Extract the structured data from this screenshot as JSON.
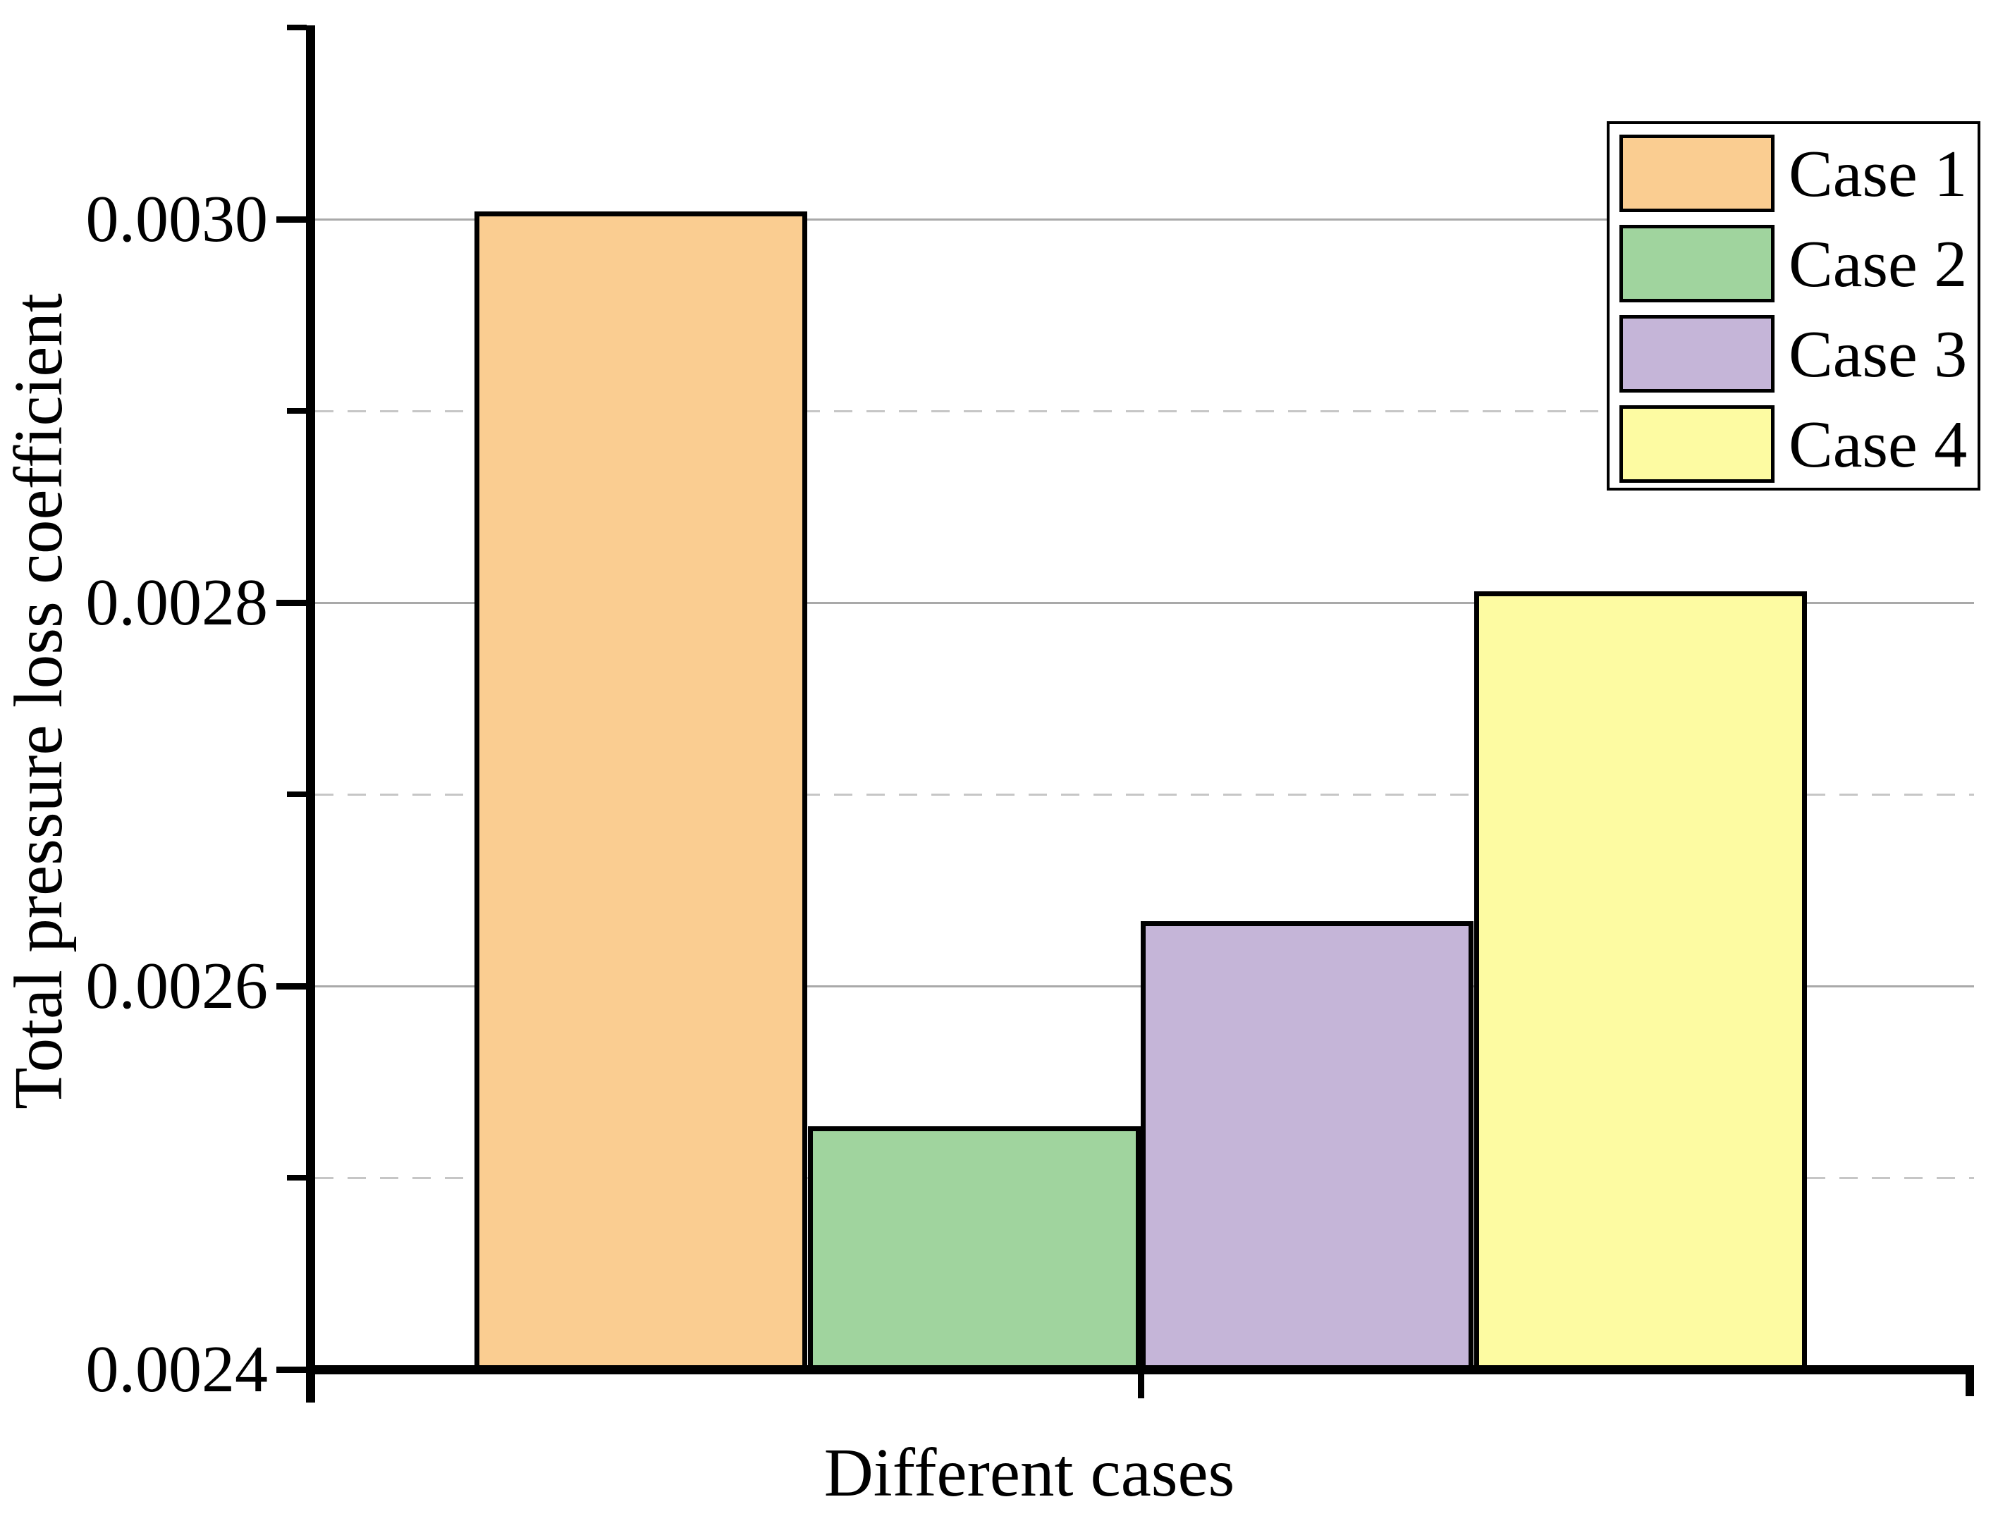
{
  "figure": {
    "background": "#ffffff",
    "axis_color": "#000000",
    "grid_major_color": "#a9a9a9",
    "grid_minor_color": "#c6c6c6"
  },
  "chart_data": {
    "type": "bar",
    "title": "",
    "categories": [
      "Case 1",
      "Case 2",
      "Case 3",
      "Case 4"
    ],
    "values": [
      0.003004,
      0.002527,
      0.002634,
      0.002806
    ],
    "bar_colors": [
      "#FACD91",
      "#A0D49E",
      "#C5B5D8",
      "#FDFBA2"
    ],
    "xlabel": "Different cases",
    "ylabel": "Total pressure loss coefficient",
    "ylim": [
      0.0024,
      0.0031
    ],
    "yticks": [
      {
        "value": 0.0024,
        "label": "0.0024"
      },
      {
        "value": 0.0026,
        "label": "0.0026"
      },
      {
        "value": 0.0028,
        "label": "0.0028"
      },
      {
        "value": 0.003,
        "label": "0.0030"
      }
    ],
    "yticks_minor": [
      0.0025,
      0.0027,
      0.0029,
      0.0031
    ],
    "grid": {
      "major": "solid",
      "minor": "dashed"
    },
    "legend": {
      "position": "top-right",
      "entries": [
        {
          "label": "Case 1",
          "color": "#FACD91"
        },
        {
          "label": "Case 2",
          "color": "#A0D49E"
        },
        {
          "label": "Case 3",
          "color": "#C5B5D8"
        },
        {
          "label": "Case 4",
          "color": "#FDFBA2"
        }
      ]
    }
  }
}
